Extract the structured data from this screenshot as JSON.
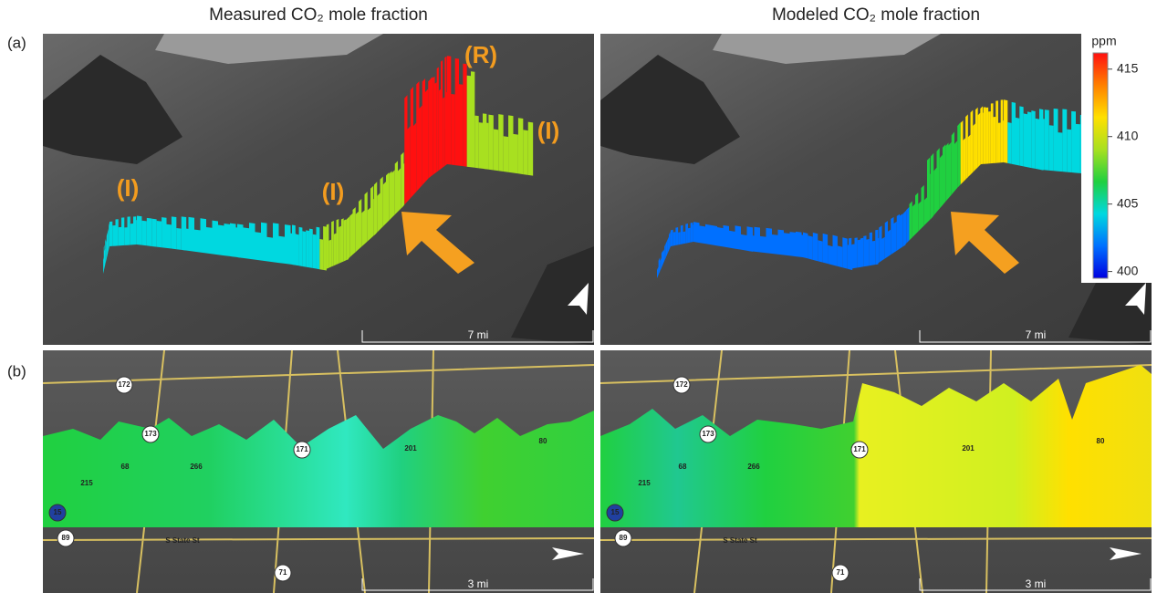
{
  "titles": {
    "left": "Measured CO₂ mole fraction",
    "right": "Modeled CO₂ mole fraction"
  },
  "panel_labels": {
    "a": "(a)",
    "b": "(b)"
  },
  "annotations": {
    "r": "(R)",
    "i1": "(I)",
    "i2": "(I)",
    "i3": "(I)"
  },
  "colorbar": {
    "unit": "ppm",
    "range": [
      399.5,
      416.2
    ],
    "ticks": [
      415,
      410,
      405,
      400
    ],
    "colors": [
      "#0000e0",
      "#0070ff",
      "#00d8e0",
      "#20d040",
      "#a8e020",
      "#ffe000",
      "#ff8000",
      "#ff1010"
    ]
  },
  "scale_bars": {
    "a_left": "7 mi",
    "a_right": "7 mi",
    "b_left": "3 mi",
    "b_right": "3 mi"
  },
  "roads": {
    "left": [
      "172",
      "173",
      "171",
      "68",
      "266",
      "215",
      "201",
      "80",
      "15",
      "89",
      "71",
      "S State St"
    ],
    "right": [
      "172",
      "173",
      "171",
      "68",
      "266",
      "215",
      "201",
      "80",
      "15",
      "89",
      "71",
      "S State St"
    ]
  }
}
